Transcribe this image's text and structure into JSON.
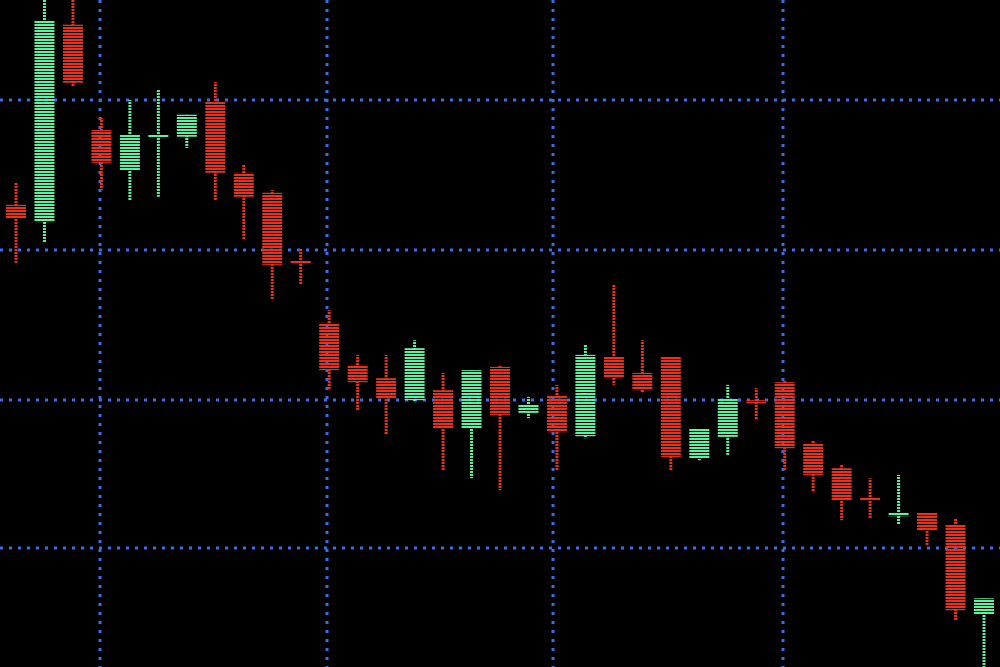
{
  "chart_data": {
    "type": "candlestick",
    "title": "",
    "xlabel": "",
    "ylabel": "",
    "ylim": [
      0,
      100
    ],
    "grid": true,
    "colors": {
      "background": "#000000",
      "grid": "#3a6cf0",
      "up": "#5ef0a0",
      "down": "#e8321e"
    },
    "candles": [
      {
        "o": 69.3,
        "c": 67.3,
        "h": 72.7,
        "l": 60.6
      },
      {
        "o": 66.7,
        "c": 97.0,
        "h": 100,
        "l": 63.7
      },
      {
        "o": 96.3,
        "c": 87.6,
        "h": 100,
        "l": 87.0
      },
      {
        "o": 80.5,
        "c": 75.6,
        "h": 82.3,
        "l": 71.5
      },
      {
        "o": 74.5,
        "c": 79.8,
        "h": 85.0,
        "l": 70.0
      },
      {
        "o": 79.3,
        "c": 79.9,
        "h": 86.5,
        "l": 70.5
      },
      {
        "o": 79.5,
        "c": 82.8,
        "h": 82.8,
        "l": 77.8
      },
      {
        "o": 84.7,
        "c": 74.1,
        "h": 87.7,
        "l": 70.0
      },
      {
        "o": 74.1,
        "c": 70.5,
        "h": 75.3,
        "l": 64.0
      },
      {
        "o": 71.1,
        "c": 60.3,
        "h": 71.5,
        "l": 55.0
      },
      {
        "o": 61.0,
        "c": 60.7,
        "h": 62.8,
        "l": 57.3
      },
      {
        "o": 51.6,
        "c": 44.5,
        "h": 53.5,
        "l": 41.5
      },
      {
        "o": 45.3,
        "c": 42.7,
        "h": 46.8,
        "l": 38.5
      },
      {
        "o": 43.3,
        "c": 40.3,
        "h": 46.8,
        "l": 34.8
      },
      {
        "o": 40.0,
        "c": 47.8,
        "h": 49.0,
        "l": 39.7
      },
      {
        "o": 41.5,
        "c": 35.8,
        "h": 44.1,
        "l": 29.5
      },
      {
        "o": 35.8,
        "c": 44.5,
        "h": 44.5,
        "l": 28.3
      },
      {
        "o": 45.0,
        "c": 37.8,
        "h": 45.3,
        "l": 26.5
      },
      {
        "o": 38.1,
        "c": 39.3,
        "h": 40.5,
        "l": 37.3
      },
      {
        "o": 40.8,
        "c": 35.2,
        "h": 42.3,
        "l": 29.5
      },
      {
        "o": 34.6,
        "c": 46.8,
        "h": 48.3,
        "l": 34.3
      },
      {
        "o": 46.5,
        "c": 43.3,
        "h": 57.3,
        "l": 42.3
      },
      {
        "o": 44.1,
        "c": 41.5,
        "h": 49.0,
        "l": 41.2
      },
      {
        "o": 46.6,
        "c": 31.5,
        "h": 46.6,
        "l": 29.5
      },
      {
        "o": 31.3,
        "c": 35.8,
        "h": 35.8,
        "l": 31.0
      },
      {
        "o": 34.5,
        "c": 40.3,
        "h": 42.3,
        "l": 31.8
      },
      {
        "o": 40.0,
        "c": 39.7,
        "h": 41.8,
        "l": 37.0
      },
      {
        "o": 42.7,
        "c": 32.8,
        "h": 43.0,
        "l": 29.5
      },
      {
        "o": 33.6,
        "c": 28.8,
        "h": 34.0,
        "l": 26.2
      },
      {
        "o": 29.8,
        "c": 25.0,
        "h": 30.3,
        "l": 22.0
      },
      {
        "o": 25.5,
        "c": 25.2,
        "h": 28.3,
        "l": 22.3
      },
      {
        "o": 22.6,
        "c": 23.1,
        "h": 28.8,
        "l": 21.3
      },
      {
        "o": 23.1,
        "c": 20.5,
        "h": 23.1,
        "l": 18.3
      },
      {
        "o": 21.3,
        "c": 8.5,
        "h": 22.3,
        "l": 7.0
      },
      {
        "o": 7.8,
        "c": 10.3,
        "h": 10.3,
        "l": 0
      }
    ]
  }
}
